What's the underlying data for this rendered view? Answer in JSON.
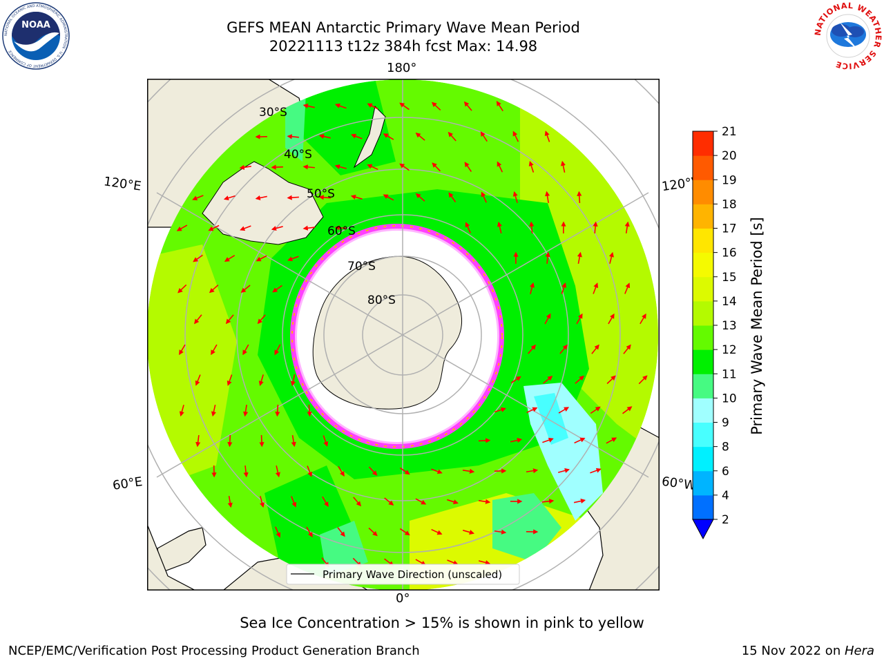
{
  "header": {
    "title_line1": "GEFS MEAN Antarctic Primary Wave Mean Period",
    "title_line2": "20221113 t12z 384h fcst   Max: 14.98"
  },
  "logos": {
    "noaa_text": "NOAA",
    "noaa_ring_text": "NATIONAL OCEANIC AND ATMOSPHERIC ADMINISTRATION · U.S. DEPARTMENT OF COMMERCE",
    "nws_ring_text": "NATIONAL WEATHER SERVICE"
  },
  "map": {
    "projection": "south-polar-stereographic",
    "longitude_labels": {
      "top": "180°",
      "bottom": "0°",
      "upper_left": "120°E",
      "upper_right": "120°W",
      "lower_left": "60°E",
      "lower_right": "60°W"
    },
    "latitude_labels": [
      "30°S",
      "40°S",
      "50°S",
      "60°S",
      "70°S",
      "80°S"
    ],
    "legend_label": "Primary Wave Direction (unscaled)",
    "arrow_color": "#ff0000"
  },
  "colorbar": {
    "label": "Primary Wave Mean Period [s]",
    "ticks": [
      "2",
      "4",
      "6",
      "8",
      "9",
      "10",
      "11",
      "12",
      "13",
      "14",
      "15",
      "16",
      "17",
      "18",
      "19",
      "20",
      "21"
    ],
    "colors": [
      "#0070ff",
      "#00b4ff",
      "#00f0ff",
      "#48ffff",
      "#a0ffff",
      "#46fa82",
      "#00f000",
      "#64fa00",
      "#b4fa00",
      "#dcfa00",
      "#f5fa00",
      "#ffe600",
      "#ffb400",
      "#ff8c00",
      "#ff5a00",
      "#ff2d00",
      "#ff0000"
    ],
    "under_color": "#0000ff"
  },
  "footer": {
    "note": "Sea Ice Concentration > 15% is shown in pink to yellow",
    "left": "NCEP/EMC/Verification Post Processing Product Generation Branch",
    "right_prefix": "15 Nov 2022 on ",
    "right_host": "Hera"
  }
}
